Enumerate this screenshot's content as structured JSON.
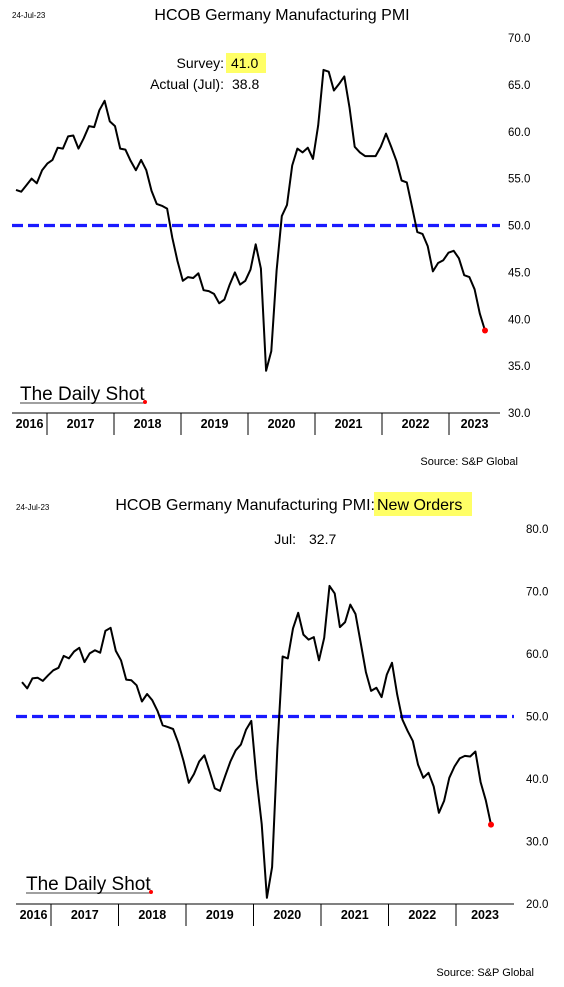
{
  "charts": [
    {
      "date_stamp": "24-Jul-23",
      "title": "HCOB Germany Manufacturing PMI",
      "title_highlight": "",
      "annotation": {
        "survey_label": "Survey:",
        "survey_value": "41.0",
        "actual_label": "Actual (Jul):",
        "actual_value": "38.8"
      },
      "watermark": "The Daily Shot",
      "source": "Source: S&P Global"
    },
    {
      "date_stamp": "24-Jul-23",
      "title": "HCOB Germany Manufacturing PMI: ",
      "title_highlight": "New Orders",
      "annotation": {
        "label": "Jul:",
        "value": "32.7"
      },
      "watermark": "The Daily Shot",
      "source": "Source: S&P Global"
    }
  ],
  "chart_data": [
    {
      "type": "line",
      "title": "HCOB Germany Manufacturing PMI",
      "x_labels": [
        "2016",
        "2017",
        "2018",
        "2019",
        "2020",
        "2021",
        "2022",
        "2023"
      ],
      "y_ticks": [
        "30.0",
        "35.0",
        "40.0",
        "45.0",
        "50.0",
        "55.0",
        "60.0",
        "65.0",
        "70.0"
      ],
      "ylim": [
        30,
        70
      ],
      "reference_line": 50,
      "reference_color": "#1a1aff",
      "line_color": "#000000",
      "last_point_color": "#ff0000",
      "series": [
        {
          "values": [
            53.8,
            53.6,
            54.3,
            55.0,
            54.5,
            55.9,
            56.6,
            57.0,
            58.3,
            58.2,
            59.5,
            59.6,
            58.2,
            59.3,
            60.6,
            60.5,
            62.3,
            63.3,
            61.1,
            60.6,
            58.2,
            58.1,
            56.9,
            55.9,
            57.0,
            55.9,
            53.7,
            52.3,
            52.1,
            51.8,
            48.7,
            46.2,
            44.1,
            44.5,
            44.4,
            44.9,
            43.1,
            43.0,
            42.7,
            41.7,
            42.1,
            43.7,
            45.0,
            43.7,
            44.1,
            45.3,
            48.0,
            45.4,
            34.5,
            36.6,
            45.2,
            51.0,
            52.2,
            56.4,
            58.2,
            57.8,
            58.3,
            57.1,
            60.7,
            66.6,
            66.4,
            64.4,
            65.1,
            65.9,
            62.6,
            58.4,
            57.8,
            57.4,
            57.4,
            57.4,
            58.4,
            59.8,
            58.4,
            56.9,
            54.8,
            54.6,
            52.0,
            49.3,
            49.1,
            47.8,
            45.1,
            46.0,
            46.3,
            47.1,
            47.3,
            46.5,
            44.7,
            44.5,
            43.2,
            40.6,
            38.8
          ]
        }
      ]
    },
    {
      "type": "line",
      "title": "HCOB Germany Manufacturing PMI: New Orders",
      "x_labels": [
        "2016",
        "2017",
        "2018",
        "2019",
        "2020",
        "2021",
        "2022",
        "2023"
      ],
      "y_ticks": [
        "20.0",
        "30.0",
        "40.0",
        "50.0",
        "60.0",
        "70.0",
        "80.0"
      ],
      "ylim": [
        20,
        80
      ],
      "reference_line": 50,
      "reference_color": "#1a1aff",
      "line_color": "#000000",
      "last_point_color": "#ff0000",
      "series": [
        {
          "values": [
            55.5,
            54.5,
            56.1,
            56.2,
            55.7,
            56.6,
            57.4,
            57.8,
            59.7,
            59.3,
            60.4,
            61.0,
            58.7,
            60.1,
            60.6,
            60.2,
            63.7,
            64.2,
            60.5,
            59.0,
            55.9,
            55.8,
            55.0,
            52.4,
            53.6,
            52.6,
            50.9,
            48.6,
            48.3,
            48.0,
            45.8,
            42.9,
            39.4,
            40.8,
            42.8,
            43.8,
            41.2,
            38.5,
            38.1,
            40.5,
            42.8,
            44.6,
            45.5,
            47.9,
            49.3,
            40.1,
            32.8,
            21.0,
            25.9,
            44.7,
            59.6,
            59.3,
            64.1,
            66.6,
            63.1,
            62.3,
            62.7,
            59.0,
            62.6,
            70.9,
            69.7,
            64.3,
            65.1,
            67.9,
            66.4,
            61.8,
            57.1,
            54.1,
            54.6,
            53.1,
            56.7,
            58.6,
            53.5,
            49.5,
            47.7,
            46.1,
            42.3,
            40.2,
            41.0,
            38.8,
            34.6,
            36.5,
            40.2,
            42.0,
            43.3,
            43.7,
            43.6,
            44.4,
            39.5,
            36.6,
            32.7
          ]
        }
      ]
    }
  ]
}
